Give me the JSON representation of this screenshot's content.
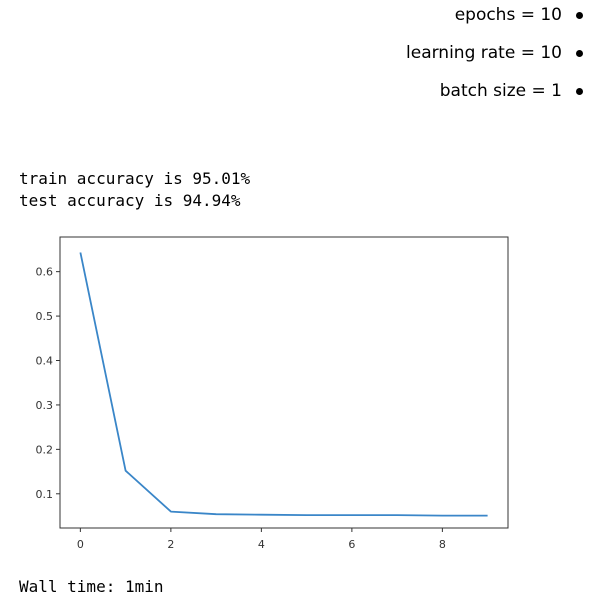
{
  "bullets": [
    {
      "text": "epochs = 10"
    },
    {
      "text": "learning rate = 10"
    },
    {
      "text": "batch size = 1"
    }
  ],
  "output": {
    "train_line": "train accuracy is 95.01%",
    "test_line": "test accuracy is 94.94%",
    "wall_time": "Wall time: 1min"
  },
  "chart_data": {
    "type": "line",
    "title": "",
    "xlabel": "",
    "ylabel": "",
    "xlim": [
      -0.45,
      9.45
    ],
    "ylim": [
      0.023,
      0.678
    ],
    "xticks": [
      0,
      2,
      4,
      6,
      8
    ],
    "xtick_labels": [
      "0",
      "2",
      "4",
      "6",
      "8"
    ],
    "yticks": [
      0.1,
      0.2,
      0.3,
      0.4,
      0.5,
      0.6
    ],
    "ytick_labels": [
      "0.1",
      "0.2",
      "0.3",
      "0.4",
      "0.5",
      "0.6"
    ],
    "grid": false,
    "series": [
      {
        "color": "#3a86c8",
        "x": [
          0,
          1,
          2,
          3,
          4,
          5,
          6,
          7,
          8,
          9
        ],
        "y": [
          0.643,
          0.152,
          0.06,
          0.054,
          0.053,
          0.052,
          0.052,
          0.052,
          0.051,
          0.051
        ]
      }
    ]
  }
}
